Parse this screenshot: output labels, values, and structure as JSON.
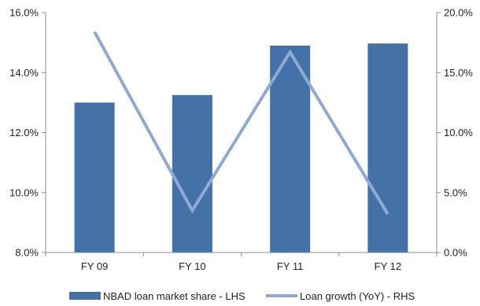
{
  "chart_data": {
    "type": "bar",
    "categories": [
      "FY 09",
      "FY 10",
      "FY 11",
      "FY 12"
    ],
    "series": [
      {
        "name": "NBAD loan market share - LHS",
        "type": "bar",
        "axis": "left",
        "values": [
          13.0,
          13.25,
          14.9,
          14.97
        ],
        "color": "#4472a8"
      },
      {
        "name": "Loan growth (YoY) - RHS",
        "type": "line",
        "axis": "right",
        "values": [
          18.4,
          3.5,
          16.7,
          3.2
        ],
        "color": "#8faad2"
      }
    ],
    "left_axis": {
      "ylim": [
        8.0,
        16.0
      ],
      "ticks": [
        8.0,
        10.0,
        12.0,
        14.0,
        16.0
      ],
      "tick_labels": [
        "8.0%",
        "10.0%",
        "12.0%",
        "14.0%",
        "16.0%"
      ]
    },
    "right_axis": {
      "ylim": [
        0.0,
        20.0
      ],
      "ticks": [
        0.0,
        5.0,
        10.0,
        15.0,
        20.0
      ],
      "tick_labels": [
        "0.0%",
        "5.0%",
        "10.0%",
        "15.0%",
        "20.0%"
      ]
    },
    "grid": false,
    "legend_position": "bottom"
  }
}
